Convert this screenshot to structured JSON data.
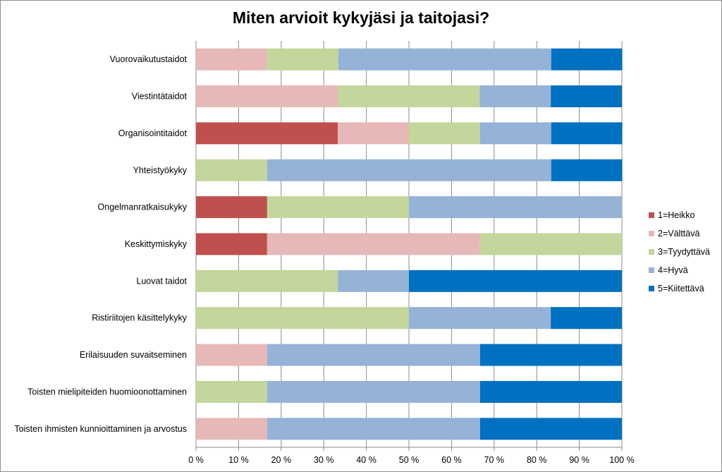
{
  "chart_data": {
    "type": "bar",
    "orientation": "horizontal",
    "stacked": "percent",
    "title": "Miten arvioit kykyjäsi ja taitojasi?",
    "categories": [
      "Vuorovaikutustaidot",
      "Viestintätaidot",
      "Organisointitaidot",
      "Yhteistyökyky",
      "Ongelmanratkaisukyky",
      "Keskittymiskyky",
      "Luovat taidot",
      "Ristiriitojen käsittelykyky",
      "Erilaisuuden suvaitseminen",
      "Toisten mielipiteiden huomioonottaminen",
      "Toisten ihmisten kunnioittaminen ja arvostus"
    ],
    "series": [
      {
        "name": "1=Heikko",
        "color": "#c0504d",
        "values": [
          0,
          0,
          33.3,
          0,
          16.7,
          16.7,
          0,
          0,
          0,
          0,
          0
        ]
      },
      {
        "name": "2=Välttävä",
        "color": "#e6b9b8",
        "values": [
          16.7,
          33.3,
          16.7,
          0,
          0,
          50,
          0,
          0,
          16.7,
          0,
          16.7
        ]
      },
      {
        "name": "3=Tyydyttävä",
        "color": "#c3d69b",
        "values": [
          16.7,
          33.3,
          16.7,
          16.7,
          33.3,
          33.3,
          33.3,
          50,
          0,
          16.7,
          0
        ]
      },
      {
        "name": "4=Hyvä",
        "color": "#95b3d7",
        "values": [
          50,
          16.7,
          16.7,
          66.7,
          50,
          0,
          16.7,
          33.3,
          50,
          50,
          50
        ]
      },
      {
        "name": "5=Kiitettävä",
        "color": "#0070c0",
        "values": [
          16.7,
          16.7,
          16.7,
          16.7,
          0,
          0,
          50,
          16.7,
          33.3,
          33.3,
          33.3
        ]
      }
    ],
    "xlim": [
      0,
      100
    ],
    "xticks": [
      "0 %",
      "10 %",
      "20 %",
      "30 %",
      "40 %",
      "50 %",
      "60 %",
      "70 %",
      "80 %",
      "90 %",
      "100 %"
    ],
    "grid": true,
    "legend": "right"
  }
}
